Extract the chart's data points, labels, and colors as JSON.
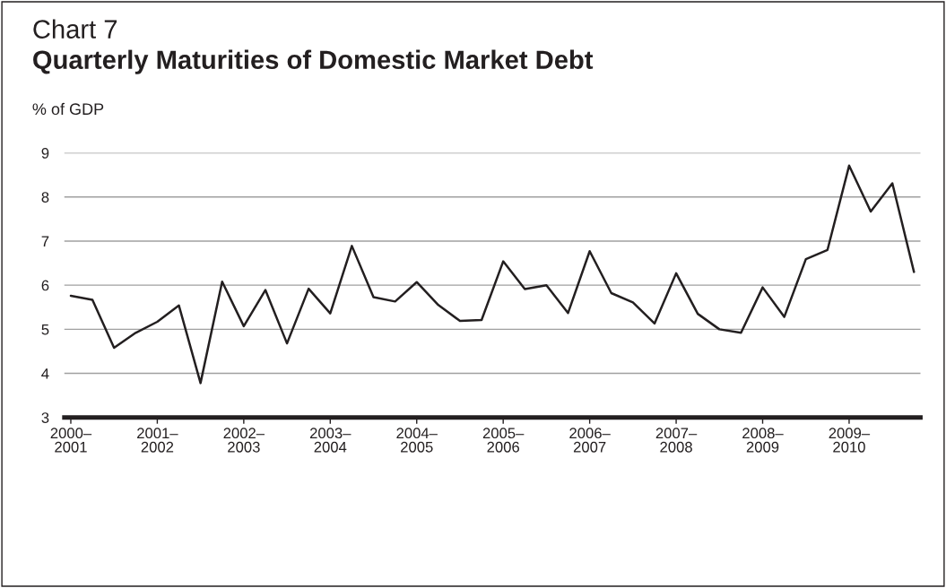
{
  "chart_data": {
    "type": "line",
    "title": "Chart 7",
    "subtitle": "Quarterly Maturities of Domestic Market Debt",
    "ylabel": "% of GDP",
    "categories": [
      "2000–\n2001",
      null,
      null,
      null,
      "2001–\n2002",
      null,
      null,
      null,
      "2002–\n2003",
      null,
      null,
      null,
      "2003–\n2004",
      null,
      null,
      null,
      "2004–\n2005",
      null,
      null,
      null,
      "2005–\n2006",
      null,
      null,
      null,
      "2006–\n2007",
      null,
      null,
      null,
      "2007–\n2008",
      null,
      null,
      null,
      "2008–\n2009",
      null,
      null,
      null,
      "2009–\n2010",
      null,
      null,
      null
    ],
    "series": [
      {
        "color": "#231f20",
        "values": [
          5.76,
          5.67,
          4.58,
          4.92,
          5.17,
          5.54,
          3.78,
          6.08,
          5.07,
          5.89,
          4.68,
          5.92,
          5.36,
          6.89,
          5.73,
          5.63,
          6.07,
          5.55,
          5.19,
          5.21,
          6.54,
          5.91,
          6.0,
          5.37,
          6.77,
          5.82,
          5.61,
          5.13,
          6.27,
          5.35,
          5.0,
          4.92,
          5.95,
          5.28,
          6.59,
          6.8,
          8.71,
          7.67,
          8.31,
          6.3
        ]
      }
    ],
    "ylim": [
      3,
      9
    ],
    "yticks": [
      3,
      4,
      5,
      6,
      7,
      8,
      9
    ],
    "grid": "y",
    "legend": false,
    "marker": "none",
    "line_style": "solid"
  }
}
